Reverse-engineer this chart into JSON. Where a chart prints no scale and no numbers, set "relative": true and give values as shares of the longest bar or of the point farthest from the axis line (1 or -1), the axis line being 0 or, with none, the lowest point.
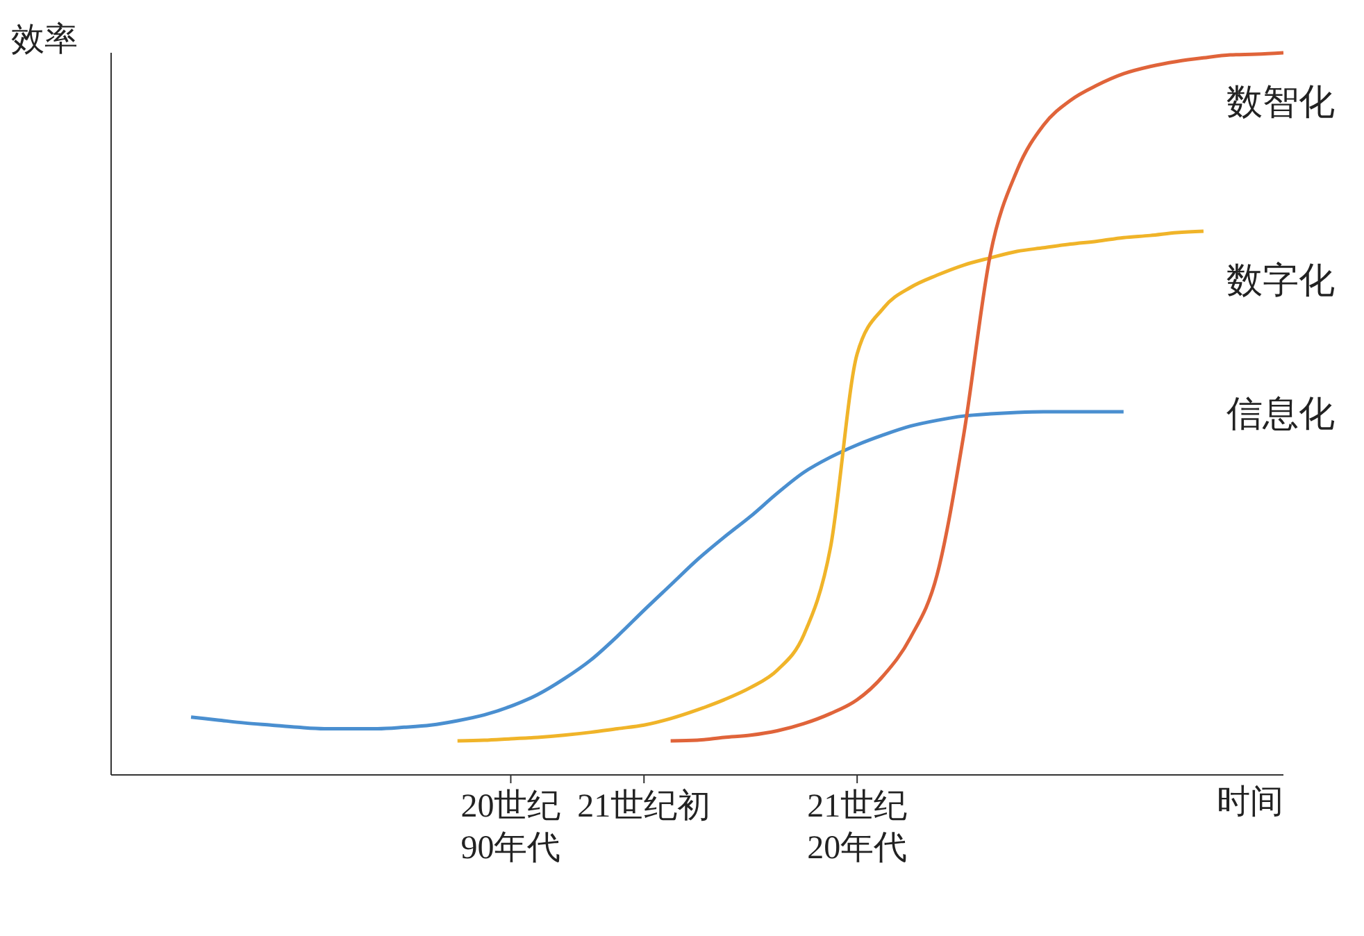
{
  "chart_data": {
    "type": "line",
    "relative": true,
    "ylabel": "效率",
    "xlabel": "时间",
    "categories": [
      null,
      null,
      null,
      null,
      null,
      null,
      null,
      null,
      null,
      null,
      null,
      null,
      null,
      null,
      null,
      "20世纪\n90年代",
      null,
      null,
      null,
      null,
      "21世纪初",
      null,
      null,
      null,
      null,
      null,
      null,
      null,
      "21世纪\n20年代",
      null,
      null,
      null,
      null,
      null,
      null,
      null,
      null,
      null,
      null,
      null,
      null,
      null,
      null,
      null,
      null
    ],
    "series": [
      {
        "name": "信息化",
        "color": "#4a8fd0",
        "values": [
          null,
          null,
          null,
          0.08,
          0.076,
          0.072,
          0.069,
          0.066,
          0.064,
          0.064,
          0.064,
          0.066,
          0.069,
          0.075,
          0.083,
          0.095,
          0.111,
          0.133,
          0.159,
          0.192,
          0.228,
          0.263,
          0.298,
          0.329,
          0.358,
          0.39,
          0.419,
          0.44,
          0.457,
          0.471,
          0.483,
          0.491,
          0.497,
          0.5,
          0.502,
          0.503,
          0.503,
          0.503,
          0.503,
          null,
          null,
          null,
          null,
          null,
          null
        ]
      },
      {
        "name": "数字化",
        "color": "#f0b429",
        "values": [
          null,
          null,
          null,
          null,
          null,
          null,
          null,
          null,
          null,
          null,
          null,
          null,
          null,
          0.047,
          0.048,
          0.05,
          0.052,
          0.055,
          0.059,
          0.064,
          0.069,
          0.078,
          0.09,
          0.104,
          0.121,
          0.145,
          0.194,
          0.315,
          0.583,
          0.647,
          0.675,
          0.692,
          0.706,
          0.716,
          0.725,
          0.73,
          0.735,
          0.739,
          0.744,
          0.747,
          0.751,
          0.753,
          null,
          null,
          null
        ]
      },
      {
        "name": "数智化",
        "color": "#e0643a",
        "values": [
          null,
          null,
          null,
          null,
          null,
          null,
          null,
          null,
          null,
          null,
          null,
          null,
          null,
          null,
          null,
          null,
          null,
          null,
          null,
          null,
          null,
          0.047,
          0.048,
          0.052,
          0.055,
          0.061,
          0.071,
          0.085,
          0.104,
          0.138,
          0.19,
          0.277,
          0.471,
          0.721,
          0.837,
          0.9,
          0.934,
          0.955,
          0.971,
          0.981,
          0.988,
          0.993,
          0.997,
          0.998,
          1.0
        ]
      }
    ]
  }
}
